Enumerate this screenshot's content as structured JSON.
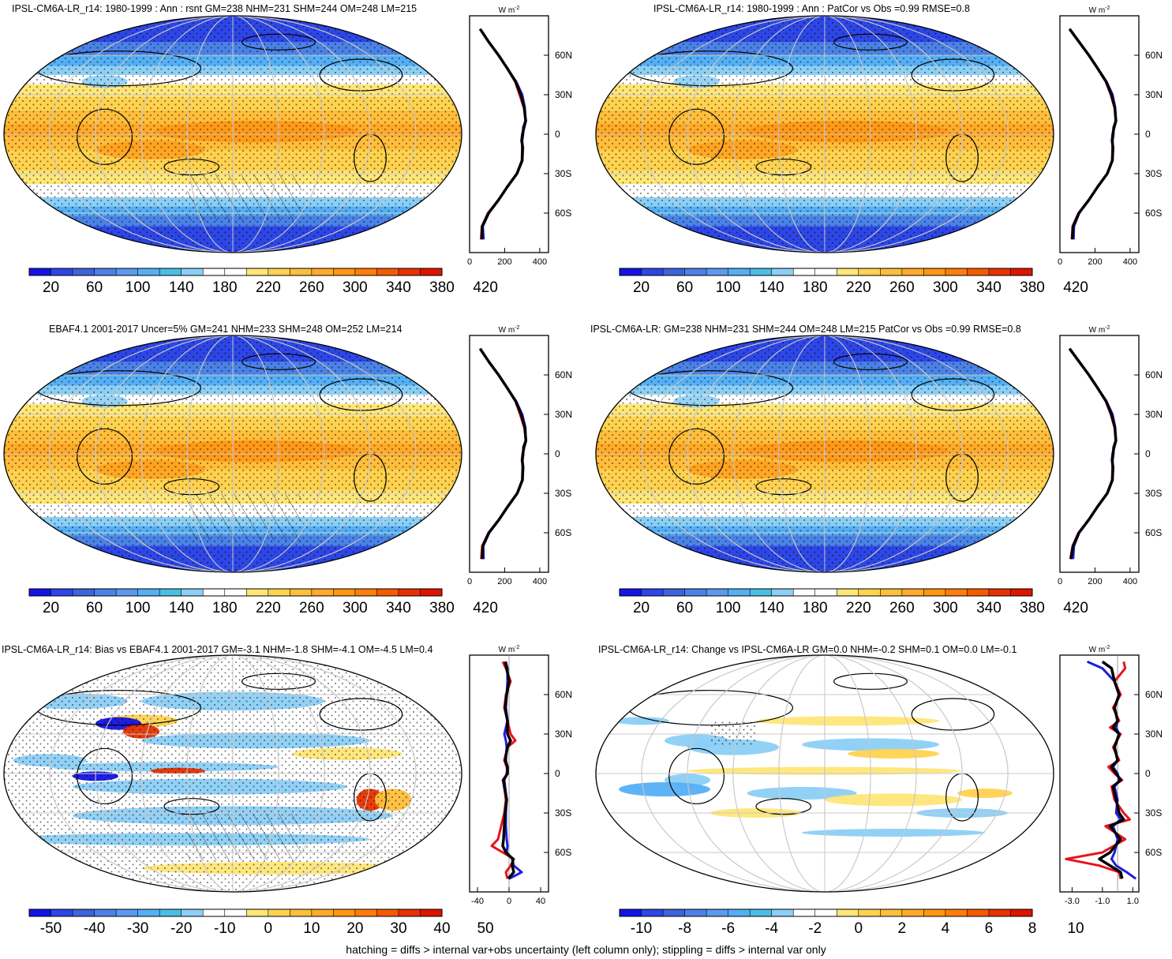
{
  "figure": {
    "footer": "hatching = diffs > internal var+obs uncertainty (left column only); stippling = diffs > internal var only"
  },
  "colors": {
    "abs_scale": [
      "#1414e6",
      "#2d46e6",
      "#3c64dc",
      "#4b82e6",
      "#5a9bf0",
      "#55aff5",
      "#4bbee6",
      "#8ccff5",
      "#ffffff",
      "#ffffff",
      "#ffe678",
      "#ffd250",
      "#ffbe3c",
      "#ffaa28",
      "#ff9614",
      "#ff7d0a",
      "#f55a00",
      "#e63200",
      "#dc1400"
    ],
    "diff_scale": [
      "#1414e6",
      "#2d46e6",
      "#3c64dc",
      "#4b82e6",
      "#5a9bf0",
      "#55aff5",
      "#4bbee6",
      "#8ccff5",
      "#ffffff",
      "#ffffff",
      "#ffe678",
      "#ffd250",
      "#ffbe3c",
      "#ffaa28",
      "#ff9614",
      "#ff7d0a",
      "#f55a00",
      "#e63200",
      "#dc1400"
    ],
    "zonal_obs": "#e6141e",
    "zonal_model": "#1e1edc",
    "zonal_black": "#000000",
    "land_outline": "#000000"
  },
  "chart_data": [
    {
      "panel": "top-left",
      "type": "heatmap",
      "title": "IPSL-CM6A-LR_r14: 1980-1999 : Ann : rsnt GM=238 NHM=231 SHM=244 OM=248 LM=215",
      "colorbar_ticks": [
        "20",
        "60",
        "100",
        "140",
        "180",
        "220",
        "260",
        "300",
        "340",
        "380",
        "420"
      ],
      "zonal": {
        "unit": "W m",
        "unit_exp": "-2",
        "xticks": [
          "0",
          "200",
          "400"
        ],
        "yticks": [
          "60N",
          "30N",
          "0",
          "30S",
          "60S"
        ],
        "xlim": [
          0,
          450
        ],
        "lat": [
          80,
          70,
          60,
          50,
          40,
          30,
          20,
          10,
          5,
          0,
          -5,
          -10,
          -20,
          -30,
          -40,
          -50,
          -60,
          -70,
          -80
        ],
        "series": [
          {
            "values": [
              60,
              110,
              165,
              215,
              260,
              285,
              310,
              320,
              310,
              300,
              295,
              305,
              300,
              270,
              215,
              165,
              105,
              70,
              65
            ]
          },
          {
            "values": [
              60,
              110,
              165,
              215,
              265,
              300,
              315,
              318,
              305,
              305,
              300,
              300,
              298,
              270,
              215,
              165,
              110,
              75,
              80
            ]
          },
          {
            "values": [
              60,
              110,
              165,
              215,
              262,
              292,
              312,
              320,
              310,
              302,
              298,
              302,
              300,
              270,
              215,
              165,
              108,
              72,
              70
            ]
          }
        ]
      }
    },
    {
      "panel": "top-right",
      "type": "heatmap",
      "title": "IPSL-CM6A-LR_r14: 1980-1999 : Ann : PatCor vs Obs =0.99 RMSE=0.8",
      "colorbar_ticks": [
        "20",
        "60",
        "100",
        "140",
        "180",
        "220",
        "260",
        "300",
        "340",
        "380",
        "420"
      ],
      "zonal": {
        "unit": "W m",
        "unit_exp": "-2",
        "xticks": [
          "0",
          "200",
          "400"
        ],
        "yticks": [
          "60N",
          "30N",
          "0",
          "30S",
          "60S"
        ],
        "xlim": [
          0,
          450
        ],
        "lat": [
          80,
          70,
          60,
          50,
          40,
          30,
          20,
          10,
          5,
          0,
          -5,
          -10,
          -20,
          -30,
          -40,
          -50,
          -60,
          -70,
          -80
        ],
        "series": [
          {
            "values": [
              55,
              110,
              165,
              215,
              262,
              290,
              312,
              320,
              310,
              300,
              296,
              304,
              300,
              270,
              215,
              165,
              106,
              72,
              68
            ]
          },
          {
            "values": [
              55,
              110,
              165,
              215,
              265,
              300,
              315,
              318,
              305,
              305,
              300,
              300,
              298,
              270,
              215,
              165,
              110,
              80,
              78
            ]
          },
          {
            "values": [
              55,
              110,
              165,
              215,
              263,
              294,
              313,
              319,
              308,
              302,
              298,
              302,
              299,
              270,
              215,
              165,
              108,
              75,
              70
            ]
          }
        ]
      }
    },
    {
      "panel": "middle-left",
      "type": "heatmap",
      "title": "EBAF4.1 2001-2017 Uncer=5% GM=241 NHM=233 SHM=248 OM=252 LM=214",
      "colorbar_ticks": [
        "20",
        "60",
        "100",
        "140",
        "180",
        "220",
        "260",
        "300",
        "340",
        "380",
        "420"
      ],
      "zonal": {
        "unit": "W m",
        "unit_exp": "-2",
        "xticks": [
          "0",
          "200",
          "400"
        ],
        "yticks": [
          "60N",
          "30N",
          "0",
          "30S",
          "60S"
        ],
        "xlim": [
          0,
          450
        ],
        "lat": [
          80,
          70,
          60,
          50,
          40,
          30,
          20,
          10,
          5,
          0,
          -5,
          -10,
          -20,
          -30,
          -40,
          -50,
          -60,
          -70,
          -80
        ],
        "series": [
          {
            "values": [
              60,
              110,
              165,
              215,
              262,
              288,
              312,
              322,
              312,
              302,
              298,
              306,
              302,
              272,
              218,
              168,
              108,
              72,
              66
            ]
          },
          {
            "values": [
              60,
              110,
              165,
              215,
              265,
              300,
              318,
              320,
              306,
              306,
              302,
              302,
              300,
              272,
              218,
              168,
              112,
              78,
              80
            ]
          },
          {
            "values": [
              60,
              110,
              165,
              215,
              263,
              294,
              315,
              321,
              309,
              304,
              300,
              304,
              301,
              272,
              218,
              168,
              110,
              75,
              72
            ]
          }
        ]
      }
    },
    {
      "panel": "middle-right",
      "type": "heatmap",
      "title": "IPSL-CM6A-LR: GM=238 NHM=231 SHM=244 OM=248 LM=215 PatCor vs Obs =0.99 RMSE=0.8",
      "colorbar_ticks": [
        "20",
        "60",
        "100",
        "140",
        "180",
        "220",
        "260",
        "300",
        "340",
        "380",
        "420"
      ],
      "zonal": {
        "unit": "W m",
        "unit_exp": "-2",
        "xticks": [
          "0",
          "200",
          "400"
        ],
        "yticks": [
          "60N",
          "30N",
          "0",
          "30S",
          "60S"
        ],
        "xlim": [
          0,
          450
        ],
        "lat": [
          80,
          70,
          60,
          50,
          40,
          30,
          20,
          10,
          5,
          0,
          -5,
          -10,
          -20,
          -30,
          -40,
          -50,
          -60,
          -70,
          -80
        ],
        "series": [
          {
            "values": [
              55,
              110,
              165,
              215,
              262,
              290,
              312,
              320,
              310,
              300,
              296,
              304,
              300,
              270,
              215,
              165,
              106,
              72,
              60
            ]
          },
          {
            "values": [
              55,
              110,
              165,
              215,
              265,
              300,
              315,
              318,
              305,
              305,
              300,
              300,
              298,
              270,
              215,
              165,
              110,
              80,
              75
            ]
          },
          {
            "values": [
              55,
              110,
              165,
              215,
              263,
              294,
              313,
              319,
              308,
              302,
              298,
              302,
              299,
              270,
              215,
              165,
              108,
              75,
              62
            ]
          }
        ]
      }
    },
    {
      "panel": "bottom-left",
      "type": "heatmap",
      "title": "IPSL-CM6A-LR_r14: Bias vs EBAF4.1 2001-2017 GM=-3.1 NHM=-1.8 SHM=-4.1 OM=-4.5 LM=0.4",
      "colorbar_ticks": [
        "-50",
        "-40",
        "-30",
        "-20",
        "-10",
        "0",
        "10",
        "20",
        "30",
        "40",
        "50"
      ],
      "zonal": {
        "unit": "W m",
        "unit_exp": "-2",
        "xticks": [
          "-40",
          "0",
          "40"
        ],
        "yticks": [
          "60N",
          "30N",
          "0",
          "30S",
          "60S"
        ],
        "xlim": [
          -50,
          50
        ],
        "lat": [
          85,
          80,
          70,
          60,
          50,
          40,
          30,
          25,
          20,
          10,
          5,
          0,
          -5,
          -10,
          -20,
          -30,
          -40,
          -50,
          -55,
          -60,
          -65,
          -70,
          -75,
          -80
        ],
        "series": [
          {
            "values": [
              -8,
              -4,
              2,
              -4,
              -6,
              -2,
              2,
              8,
              -2,
              -6,
              -3,
              -2,
              -8,
              -6,
              -4,
              -6,
              -10,
              -14,
              -22,
              -8,
              6,
              2,
              -4,
              -2
            ]
          },
          {
            "values": [
              -4,
              -2,
              -2,
              -3,
              -4,
              -2,
              -6,
              -4,
              -3,
              -4,
              -2,
              -3,
              -6,
              -5,
              -3,
              -4,
              -4,
              -3,
              -2,
              -3,
              4,
              6,
              16,
              0
            ]
          },
          {
            "values": [
              -5,
              -3,
              0,
              -3,
              -5,
              -2,
              -2,
              2,
              -2,
              -5,
              -2,
              -2,
              -7,
              -6,
              -3,
              -5,
              -6,
              -7,
              -8,
              -4,
              5,
              4,
              6,
              -1
            ]
          }
        ]
      }
    },
    {
      "panel": "bottom-right",
      "type": "heatmap",
      "title": "IPSL-CM6A-LR_r14: Change vs IPSL-CM6A-LR GM=0.0 NHM=-0.2 SHM=0.1 OM=0.0 LM=-0.1",
      "colorbar_ticks": [
        "-10",
        "-8",
        "-6",
        "-4",
        "-2",
        "0",
        "2",
        "4",
        "6",
        "8",
        "10"
      ],
      "zonal": {
        "unit": "W m",
        "unit_exp": "-2",
        "xticks": [
          "-3.0",
          "-1.0",
          "1.0"
        ],
        "yticks": [
          "60N",
          "30N",
          "0",
          "30S",
          "60S"
        ],
        "xlim": [
          -3.8,
          1.4
        ],
        "lat": [
          85,
          80,
          70,
          60,
          50,
          40,
          35,
          30,
          20,
          10,
          5,
          0,
          -5,
          -10,
          -20,
          -30,
          -35,
          -40,
          -50,
          -60,
          -65,
          -70,
          -75,
          -80
        ],
        "series": [
          {
            "values": [
              0.4,
              0.5,
              -0.2,
              0.2,
              -0.3,
              0.1,
              -0.5,
              0.2,
              -0.3,
              0.1,
              -0.6,
              -0.2,
              0.3,
              -0.4,
              -0.2,
              0.4,
              0.8,
              -0.8,
              0.5,
              -1.0,
              -3.4,
              -1.2,
              0.1,
              0.2
            ]
          },
          {
            "values": [
              -2.0,
              -1.0,
              -0.2,
              0.1,
              -0.2,
              0.0,
              -0.1,
              0.1,
              -0.2,
              0.0,
              -0.3,
              0.0,
              0.1,
              -0.2,
              0.0,
              -0.1,
              0.2,
              -0.3,
              0.0,
              -0.2,
              -0.4,
              -0.1,
              0.6,
              1.2
            ]
          },
          {
            "values": [
              -1.0,
              -0.4,
              -0.2,
              0.1,
              -0.2,
              0.0,
              -0.3,
              0.1,
              -0.2,
              0.0,
              -0.4,
              -0.1,
              0.2,
              -0.3,
              -0.1,
              0.1,
              0.4,
              -0.5,
              0.2,
              -0.5,
              -1.2,
              -0.5,
              0.2,
              0.3
            ]
          }
        ]
      }
    }
  ]
}
